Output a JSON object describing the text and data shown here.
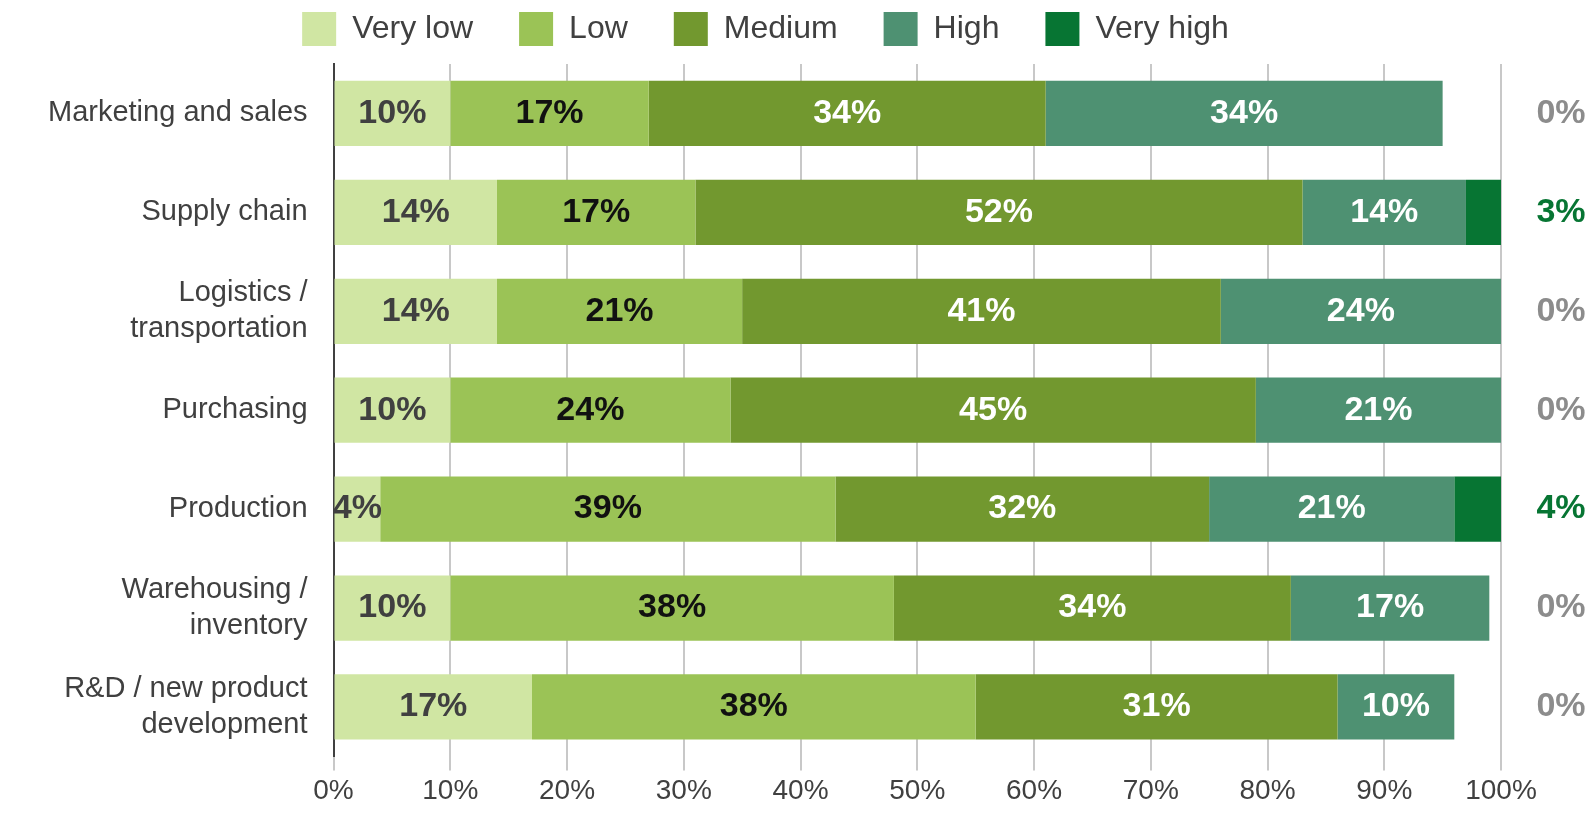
{
  "chart_data": {
    "type": "bar",
    "orientation": "horizontal",
    "stacked": true,
    "categories": [
      "Marketing and sales",
      "Supply chain",
      "Logistics / transportation",
      "Purchasing",
      "Production",
      "Warehousing / inventory",
      "R&D / new product development"
    ],
    "series": [
      {
        "name": "Very low",
        "color": "#d0e6a3",
        "values": [
          10,
          14,
          14,
          10,
          4,
          10,
          17
        ],
        "value_labels": [
          "10%",
          "14%",
          "14%",
          "10%",
          "4%",
          "10%",
          "17%"
        ]
      },
      {
        "name": "Low",
        "color": "#9bc356",
        "values": [
          17,
          17,
          21,
          24,
          39,
          38,
          38
        ],
        "value_labels": [
          "17%",
          "17%",
          "21%",
          "24%",
          "39%",
          "38%",
          "38%"
        ]
      },
      {
        "name": "Medium",
        "color": "#72982f",
        "values": [
          34,
          52,
          41,
          45,
          32,
          34,
          31
        ],
        "value_labels": [
          "34%",
          "52%",
          "41%",
          "45%",
          "32%",
          "34%",
          "31%"
        ]
      },
      {
        "name": "High",
        "color": "#4e9172",
        "values": [
          34,
          14,
          24,
          21,
          21,
          17,
          10
        ],
        "value_labels": [
          "34%",
          "14%",
          "24%",
          "21%",
          "21%",
          "17%",
          "10%"
        ]
      },
      {
        "name": "Very high",
        "color": "#077533",
        "values": [
          0,
          3,
          0,
          0,
          4,
          0,
          0
        ],
        "value_labels": [
          "0%",
          "3%",
          "0%",
          "0%",
          "4%",
          "0%",
          "0%"
        ]
      }
    ],
    "xlim": [
      0,
      100
    ],
    "xticks": [
      {
        "value": 0,
        "label": "0%"
      },
      {
        "value": 10,
        "label": "10%"
      },
      {
        "value": 20,
        "label": "20%"
      },
      {
        "value": 30,
        "label": "30%"
      },
      {
        "value": 40,
        "label": "40%"
      },
      {
        "value": 50,
        "label": "50%"
      },
      {
        "value": 60,
        "label": "60%"
      },
      {
        "value": 70,
        "label": "70%"
      },
      {
        "value": 80,
        "label": "80%"
      },
      {
        "value": 90,
        "label": "90%"
      },
      {
        "value": 100,
        "label": "100%"
      }
    ],
    "grid": "x",
    "legend": "top"
  }
}
